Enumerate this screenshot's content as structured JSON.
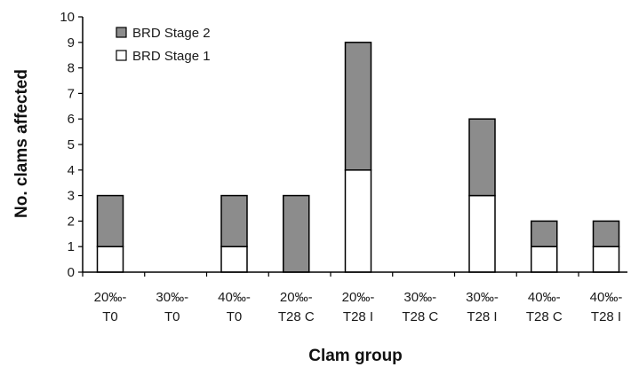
{
  "chart_data": {
    "type": "bar",
    "stacked": true,
    "categories": [
      [
        "20‰-",
        "T0"
      ],
      [
        "30‰-",
        "T0"
      ],
      [
        "40‰-",
        "T0"
      ],
      [
        "20‰-",
        "T28 C"
      ],
      [
        "20‰-",
        "T28 I"
      ],
      [
        "30‰-",
        "T28 C"
      ],
      [
        "30‰-",
        "T28 I"
      ],
      [
        "40‰-",
        "T28 C"
      ],
      [
        "40‰-",
        "T28 I"
      ]
    ],
    "series": [
      {
        "name": "BRD Stage 1",
        "color": "#ffffff",
        "values": [
          1,
          0,
          1,
          0,
          4,
          0,
          3,
          1,
          1
        ]
      },
      {
        "name": "BRD Stage 2",
        "color": "#8c8c8c",
        "values": [
          2,
          0,
          2,
          3,
          5,
          0,
          3,
          1,
          1
        ]
      }
    ],
    "legend_order": [
      "BRD Stage 2",
      "BRD Stage 1"
    ],
    "legend_position": "top-left",
    "title": "",
    "xlabel": "Clam group",
    "ylabel": "No. clams affected",
    "ylim": [
      0,
      10
    ],
    "yticks": [
      0,
      1,
      2,
      3,
      4,
      5,
      6,
      7,
      8,
      9,
      10
    ],
    "grid": false
  }
}
